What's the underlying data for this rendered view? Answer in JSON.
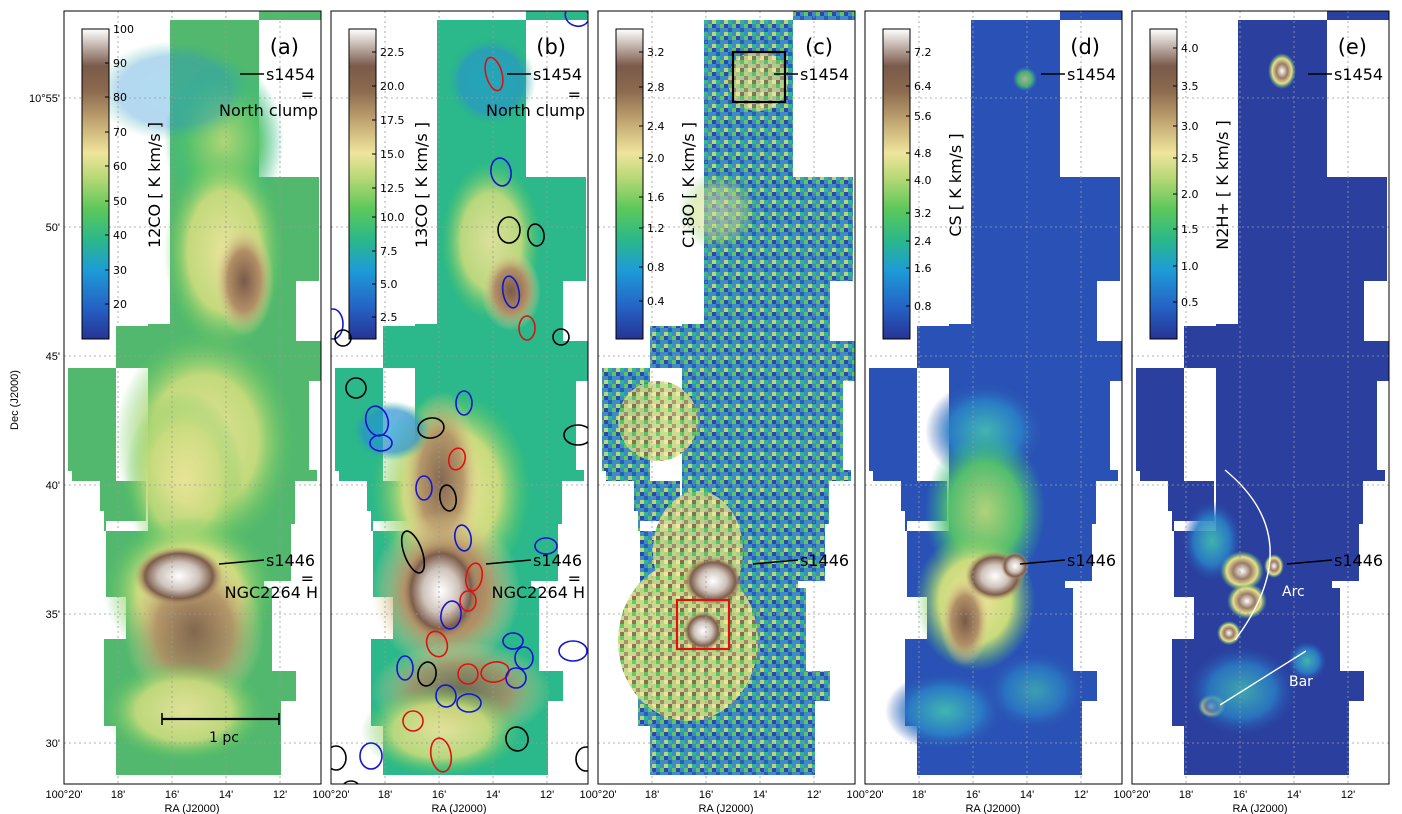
{
  "figure": {
    "ylabel": "Dec (J2000)",
    "xlabel": "RA (J2000)",
    "ra_ticks": [
      "100°20'",
      "18'",
      "16'",
      "14'",
      "12'"
    ],
    "dec_ticks": [
      "10°55'",
      "50'",
      "45'",
      "40'",
      "35'",
      "30'"
    ]
  },
  "panels": [
    {
      "letter": "(a)",
      "colorbar_label": "12CO [ K km/s ]",
      "colorbar_ticks": [
        "100",
        "90",
        "80",
        "70",
        "60",
        "50",
        "40",
        "30",
        "20"
      ],
      "annotations": {
        "north": "s1454",
        "north_eq": "=",
        "north_name": "North clump",
        "south": "s1446",
        "south_eq": "=",
        "south_name": "NGC2264 H"
      },
      "scale_bar": "1 pc"
    },
    {
      "letter": "(b)",
      "colorbar_label": "13CO [ K km/s ]",
      "colorbar_ticks": [
        "22.5",
        "20.0",
        "17.5",
        "15.0",
        "12.5",
        "10.0",
        "7.5",
        "5.0",
        "2.5"
      ],
      "annotations": {
        "north": "s1454",
        "north_eq": "=",
        "north_name": "North clump",
        "south": "s1446",
        "south_eq": "=",
        "south_name": "NGC2264 H"
      }
    },
    {
      "letter": "(c)",
      "colorbar_label": "C18O [ K km/s ]",
      "colorbar_ticks": [
        "3.2",
        "2.8",
        "2.4",
        "2.0",
        "1.6",
        "1.2",
        "0.8",
        "0.4"
      ],
      "annotations": {
        "north": "s1454",
        "south": "s1446"
      }
    },
    {
      "letter": "(d)",
      "colorbar_label": "CS [ K km/s ]",
      "colorbar_ticks": [
        "7.2",
        "6.4",
        "5.6",
        "4.8",
        "4.0",
        "3.2",
        "2.4",
        "1.6",
        "0.8"
      ],
      "annotations": {
        "north": "s1454",
        "south": "s1446"
      }
    },
    {
      "letter": "(e)",
      "colorbar_label": "N2H+ [ K km/s ]",
      "colorbar_ticks": [
        "4.0",
        "3.5",
        "3.0",
        "2.5",
        "2.0",
        "1.5",
        "1.0",
        "0.5"
      ],
      "annotations": {
        "north": "s1454",
        "south": "s1446",
        "arc": "Arc",
        "bar": "Bar"
      }
    }
  ],
  "colors": {
    "ellipse_red": "#e01010",
    "ellipse_blue": "#1515d0",
    "ellipse_black": "#000000",
    "box_black": "#000000",
    "box_red": "#e01010"
  },
  "chart_data": {
    "type": "heatmap",
    "title": "",
    "xlabel": "RA (J2000)",
    "ylabel": "Dec (J2000)",
    "x_ticks": [
      "100°20'",
      "18'",
      "16'",
      "14'",
      "12'"
    ],
    "y_ticks": [
      "10°55'",
      "50'",
      "45'",
      "40'",
      "35'",
      "30'"
    ],
    "grid": true,
    "maps": [
      {
        "panel": "(a)",
        "tracer": "12CO",
        "unit": "K km/s",
        "colorbar_range": [
          13,
          100
        ],
        "colormap": "gist_earth-like"
      },
      {
        "panel": "(b)",
        "tracer": "13CO",
        "unit": "K km/s",
        "colorbar_range": [
          1,
          24
        ],
        "colormap": "gist_earth-like"
      },
      {
        "panel": "(c)",
        "tracer": "C18O",
        "unit": "K km/s",
        "colorbar_range": [
          0,
          3.5
        ],
        "colormap": "gist_earth-like"
      },
      {
        "panel": "(d)",
        "tracer": "CS",
        "unit": "K km/s",
        "colorbar_range": [
          0.2,
          7.9
        ],
        "colormap": "gist_earth-like"
      },
      {
        "panel": "(e)",
        "tracer": "N2H+",
        "unit": "K km/s",
        "colorbar_range": [
          0.1,
          4.4
        ],
        "colormap": "gist_earth-like"
      }
    ],
    "sources": [
      "s1454",
      "s1446"
    ]
  }
}
